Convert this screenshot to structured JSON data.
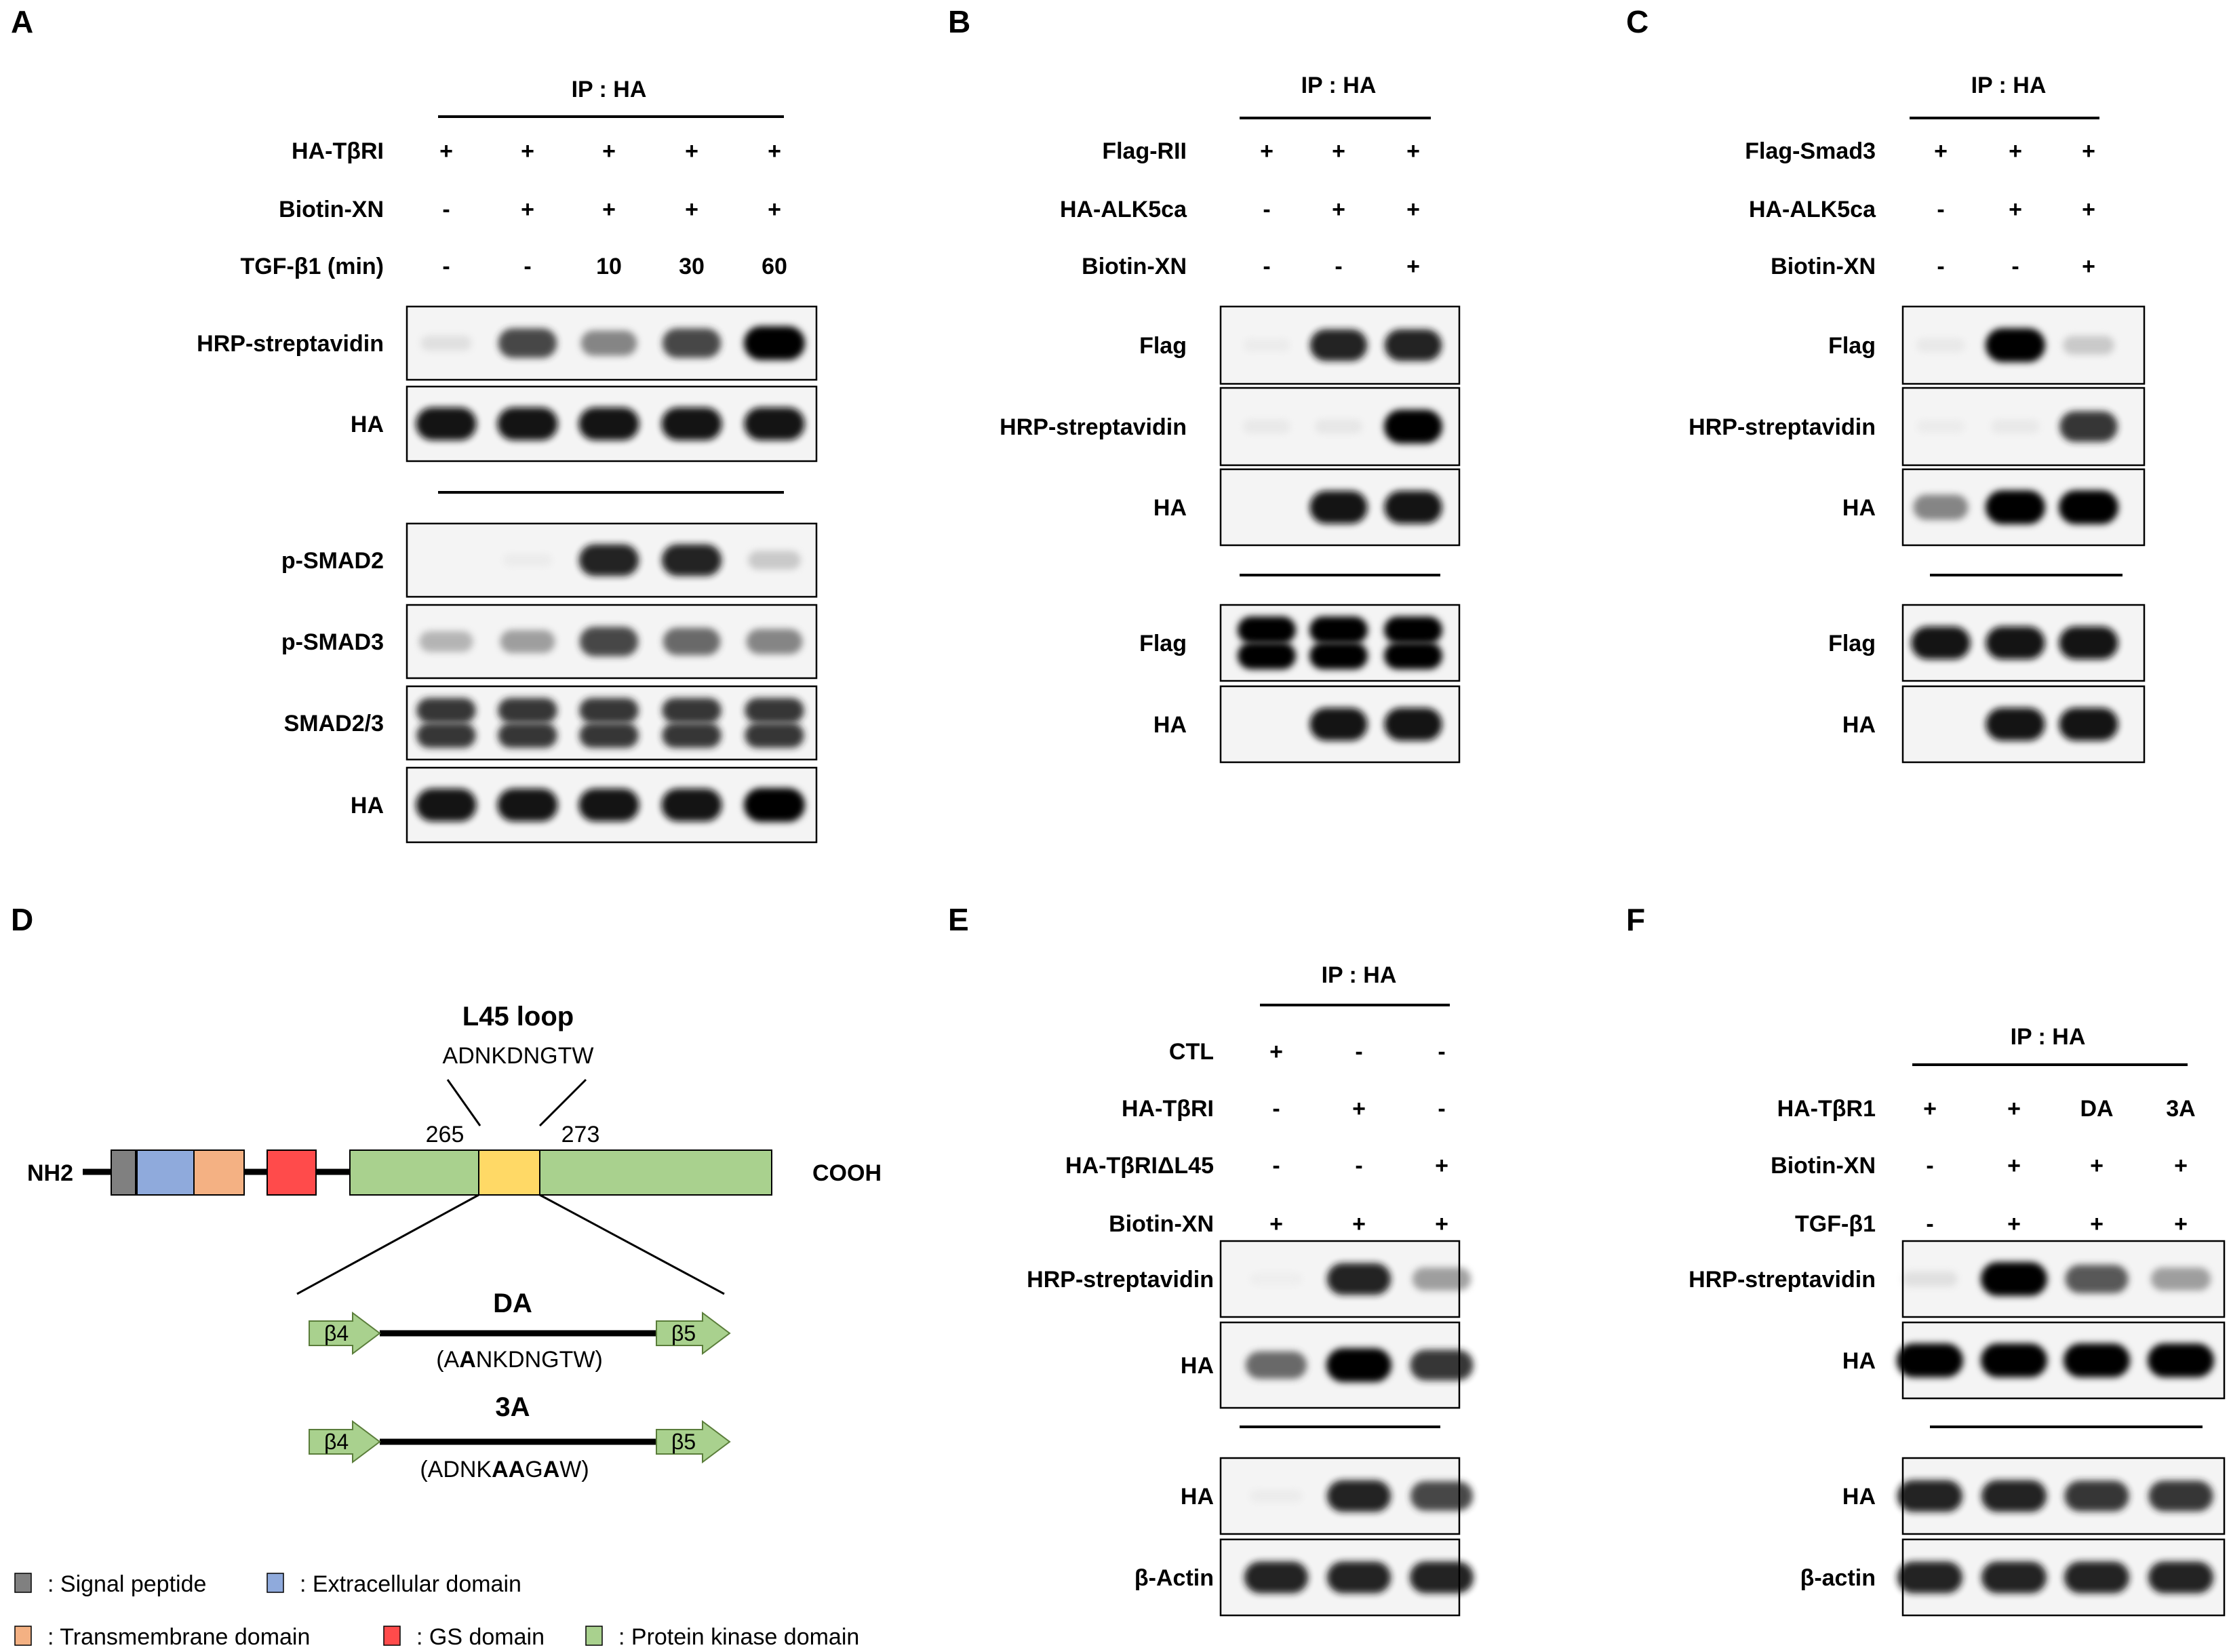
{
  "panels": {
    "A": {
      "letter": "A",
      "ip": "IP : HA",
      "rows": [
        {
          "label": "HA-TβRI",
          "marks": [
            "+",
            "+",
            "+",
            "+",
            "+"
          ]
        },
        {
          "label": "Biotin-XN",
          "marks": [
            "-",
            "+",
            "+",
            "+",
            "+"
          ]
        },
        {
          "label": "TGF-β1 (min)",
          "marks": [
            "-",
            "-",
            "10",
            "30",
            "60"
          ]
        }
      ],
      "blots": [
        {
          "label": "HRP-streptavidin",
          "bands": [
            0.15,
            0.8,
            0.6,
            0.8,
            1.0
          ]
        },
        {
          "label": "HA",
          "bands": [
            0.95,
            0.95,
            0.95,
            0.95,
            0.95
          ]
        },
        {
          "label": "p-SMAD2",
          "bands": [
            0.0,
            0.05,
            0.9,
            0.9,
            0.3
          ]
        },
        {
          "label": "p-SMAD3",
          "bands": [
            0.4,
            0.5,
            0.8,
            0.7,
            0.6
          ]
        },
        {
          "label": "SMAD2/3",
          "bands": [
            0.85,
            0.85,
            0.85,
            0.85,
            0.85
          ]
        },
        {
          "label": "HA",
          "bands": [
            0.95,
            0.95,
            0.95,
            0.95,
            1.0
          ]
        }
      ]
    },
    "B": {
      "letter": "B",
      "ip": "IP : HA",
      "rows": [
        {
          "label": "Flag-RII",
          "marks": [
            "+",
            "+",
            "+"
          ]
        },
        {
          "label": "HA-ALK5ca",
          "marks": [
            "-",
            "+",
            "+"
          ]
        },
        {
          "label": "Biotin-XN",
          "marks": [
            "-",
            "-",
            "+"
          ]
        }
      ],
      "blots": [
        {
          "label": "Flag",
          "bands": [
            0.05,
            0.9,
            0.9
          ]
        },
        {
          "label": "HRP-streptavidin",
          "bands": [
            0.08,
            0.1,
            1.0
          ]
        },
        {
          "label": "HA",
          "bands": [
            0.0,
            0.95,
            0.95
          ]
        },
        {
          "label": "Flag",
          "bands": [
            1.0,
            1.0,
            1.0
          ]
        },
        {
          "label": "HA",
          "bands": [
            0.0,
            0.95,
            0.95
          ]
        }
      ]
    },
    "C": {
      "letter": "C",
      "ip": "IP : HA",
      "rows": [
        {
          "label": "Flag-Smad3",
          "marks": [
            "+",
            "+",
            "+"
          ]
        },
        {
          "label": "HA-ALK5ca",
          "marks": [
            "-",
            "+",
            "+"
          ]
        },
        {
          "label": "Biotin-XN",
          "marks": [
            "-",
            "-",
            "+"
          ]
        }
      ],
      "blots": [
        {
          "label": "Flag",
          "bands": [
            0.08,
            1.0,
            0.3
          ]
        },
        {
          "label": "HRP-streptavidin",
          "bands": [
            0.05,
            0.08,
            0.85
          ]
        },
        {
          "label": "HA",
          "bands": [
            0.6,
            1.0,
            1.0
          ]
        },
        {
          "label": "Flag",
          "bands": [
            0.95,
            0.95,
            0.95
          ]
        },
        {
          "label": "HA",
          "bands": [
            0.0,
            0.95,
            0.95
          ]
        }
      ]
    },
    "D": {
      "letter": "D",
      "loop_title": "L45 loop",
      "loop_seq": "ADNKDNGTW",
      "pos_start": "265",
      "pos_end": "273",
      "nterm": "NH2",
      "cterm": "COOH",
      "strand_left": "β4",
      "strand_right": "β5",
      "mut1_name": "DA",
      "mut1_seq": [
        {
          "t": "(A",
          "b": false
        },
        {
          "t": "A",
          "b": true
        },
        {
          "t": "NKDNGTW)",
          "b": false
        }
      ],
      "mut2_name": "3A",
      "mut2_seq": [
        {
          "t": "(ADNK",
          "b": false
        },
        {
          "t": "AA",
          "b": true
        },
        {
          "t": "G",
          "b": false
        },
        {
          "t": "A",
          "b": true
        },
        {
          "t": "W)",
          "b": false
        }
      ],
      "legend": [
        {
          "label": ": Signal peptide",
          "color": "#808080"
        },
        {
          "label": ": Extracellular  domain",
          "color": "#8faadc"
        },
        {
          "label": ": Transmembrane  domain",
          "color": "#f4b183"
        },
        {
          "label": ": GS domain",
          "color": "#ff4b4b"
        },
        {
          "label": ": Protein kinase domain",
          "color": "#a9d18e"
        }
      ],
      "colors": {
        "signal": "#808080",
        "extracellular": "#8faadc",
        "transmembrane": "#f4b183",
        "gs": "#ff4b4b",
        "kinase": "#a9d18e",
        "loop": "#ffd966"
      }
    },
    "E": {
      "letter": "E",
      "ip": "IP : HA",
      "rows": [
        {
          "label": "CTL",
          "marks": [
            "+",
            "-",
            "-"
          ]
        },
        {
          "label": "HA-TβRI",
          "marks": [
            "-",
            "+",
            "-"
          ]
        },
        {
          "label": "HA-TβRIΔL45",
          "marks": [
            "-",
            "-",
            "+"
          ]
        },
        {
          "label": "Biotin-XN",
          "marks": [
            "+",
            "+",
            "+"
          ]
        }
      ],
      "blots": [
        {
          "label": "HRP-streptavidin",
          "bands": [
            0.03,
            0.9,
            0.5
          ]
        },
        {
          "label": "HA",
          "bands": [
            0.7,
            1.0,
            0.85
          ]
        },
        {
          "label": "HA",
          "bands": [
            0.05,
            0.9,
            0.8
          ]
        },
        {
          "label": "β-Actin",
          "bands": [
            0.9,
            0.9,
            0.9
          ]
        }
      ]
    },
    "F": {
      "letter": "F",
      "ip": "IP : HA",
      "rows": [
        {
          "label": "HA-TβR1",
          "marks": [
            "+",
            "+",
            "DA",
            "3A"
          ]
        },
        {
          "label": "Biotin-XN",
          "marks": [
            "-",
            "+",
            "+",
            "+"
          ]
        },
        {
          "label": "TGF-β1",
          "marks": [
            "-",
            "+",
            "+",
            "+"
          ]
        }
      ],
      "blots": [
        {
          "label": "HRP-streptavidin",
          "bands": [
            0.15,
            1.0,
            0.75,
            0.5
          ]
        },
        {
          "label": "HA",
          "bands": [
            1.0,
            1.0,
            1.0,
            1.0
          ]
        },
        {
          "label": "HA",
          "bands": [
            0.9,
            0.9,
            0.85,
            0.85
          ]
        },
        {
          "label": "β-actin",
          "bands": [
            0.9,
            0.9,
            0.9,
            0.9
          ]
        }
      ]
    }
  }
}
